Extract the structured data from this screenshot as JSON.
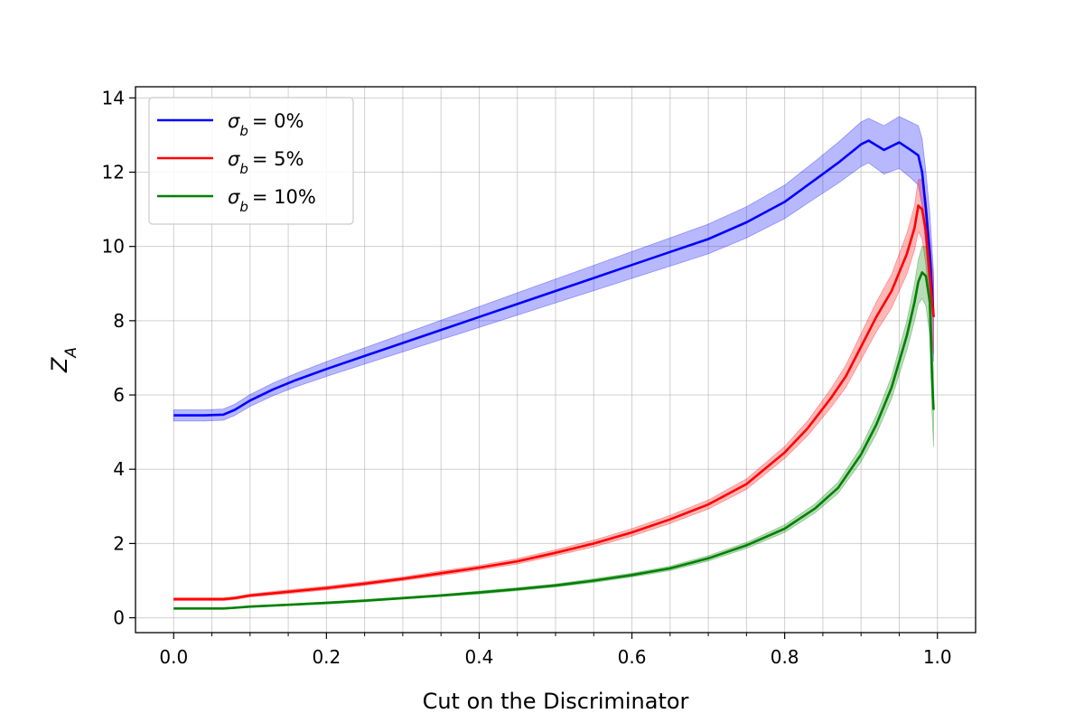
{
  "chart_data": {
    "type": "line",
    "title": "",
    "xlabel": "Cut on the Discriminator",
    "ylabel": "Z_A",
    "xlim": [
      -0.05,
      1.05
    ],
    "ylim": [
      -0.4,
      14.3
    ],
    "xticks": [
      0.0,
      0.2,
      0.4,
      0.6,
      0.8,
      1.0
    ],
    "xtick_labels": [
      "0.0",
      "0.2",
      "0.4",
      "0.6",
      "0.8",
      "1.0"
    ],
    "xminor_ticks": [
      0.05,
      0.1,
      0.15,
      0.25,
      0.3,
      0.35,
      0.45,
      0.5,
      0.55,
      0.65,
      0.7,
      0.75,
      0.85,
      0.9,
      0.95
    ],
    "yticks": [
      0,
      2,
      4,
      6,
      8,
      10,
      12,
      14
    ],
    "ytick_labels": [
      "0",
      "2",
      "4",
      "6",
      "8",
      "10",
      "12",
      "14"
    ],
    "grid": true,
    "legend_position": "top-left",
    "series": [
      {
        "name": "σ_b = 0%",
        "color": "#0000ff",
        "x": [
          0.0,
          0.02,
          0.04,
          0.065,
          0.08,
          0.1,
          0.13,
          0.16,
          0.2,
          0.25,
          0.3,
          0.35,
          0.4,
          0.45,
          0.5,
          0.55,
          0.6,
          0.65,
          0.7,
          0.75,
          0.8,
          0.84,
          0.87,
          0.9,
          0.91,
          0.93,
          0.95,
          0.965,
          0.975,
          0.98,
          0.985,
          0.99,
          0.995
        ],
        "y": [
          5.45,
          5.45,
          5.45,
          5.47,
          5.6,
          5.85,
          6.15,
          6.4,
          6.7,
          7.05,
          7.4,
          7.75,
          8.1,
          8.45,
          8.8,
          9.15,
          9.5,
          9.85,
          10.2,
          10.65,
          11.2,
          11.8,
          12.25,
          12.75,
          12.85,
          12.6,
          12.8,
          12.6,
          12.45,
          12.0,
          11.0,
          9.8,
          8.1
        ],
        "band": [
          0.15,
          0.15,
          0.15,
          0.15,
          0.15,
          0.16,
          0.17,
          0.18,
          0.2,
          0.22,
          0.24,
          0.26,
          0.28,
          0.3,
          0.32,
          0.34,
          0.36,
          0.38,
          0.4,
          0.42,
          0.45,
          0.5,
          0.55,
          0.6,
          0.6,
          0.65,
          0.7,
          0.75,
          0.8,
          0.9,
          1.0,
          1.1,
          1.2
        ]
      },
      {
        "name": "σ_b = 5%",
        "color": "#ff0000",
        "x": [
          0.0,
          0.02,
          0.04,
          0.065,
          0.08,
          0.1,
          0.15,
          0.2,
          0.25,
          0.3,
          0.35,
          0.4,
          0.45,
          0.5,
          0.55,
          0.6,
          0.65,
          0.7,
          0.75,
          0.8,
          0.83,
          0.86,
          0.88,
          0.9,
          0.92,
          0.94,
          0.96,
          0.97,
          0.975,
          0.98,
          0.985,
          0.99,
          0.995
        ],
        "y": [
          0.5,
          0.5,
          0.5,
          0.5,
          0.53,
          0.6,
          0.7,
          0.8,
          0.92,
          1.05,
          1.2,
          1.35,
          1.52,
          1.75,
          2.0,
          2.3,
          2.65,
          3.05,
          3.6,
          4.45,
          5.1,
          5.9,
          6.5,
          7.3,
          8.1,
          8.8,
          9.8,
          10.5,
          11.1,
          11.0,
          10.4,
          9.2,
          8.1
        ],
        "band": [
          0.04,
          0.04,
          0.04,
          0.04,
          0.04,
          0.04,
          0.05,
          0.05,
          0.05,
          0.05,
          0.06,
          0.06,
          0.07,
          0.08,
          0.09,
          0.1,
          0.11,
          0.12,
          0.14,
          0.16,
          0.2,
          0.25,
          0.3,
          0.35,
          0.4,
          0.45,
          0.55,
          0.6,
          0.7,
          0.8,
          0.9,
          1.0,
          1.0
        ]
      },
      {
        "name": "σ_b = 10%",
        "color": "#008000",
        "x": [
          0.0,
          0.02,
          0.04,
          0.065,
          0.08,
          0.1,
          0.15,
          0.2,
          0.25,
          0.3,
          0.35,
          0.4,
          0.45,
          0.5,
          0.55,
          0.6,
          0.65,
          0.7,
          0.75,
          0.8,
          0.84,
          0.87,
          0.9,
          0.92,
          0.94,
          0.96,
          0.97,
          0.975,
          0.98,
          0.985,
          0.99,
          0.993,
          0.995
        ],
        "y": [
          0.25,
          0.25,
          0.25,
          0.25,
          0.27,
          0.3,
          0.35,
          0.4,
          0.46,
          0.53,
          0.6,
          0.68,
          0.77,
          0.87,
          1.0,
          1.15,
          1.33,
          1.6,
          1.95,
          2.4,
          2.95,
          3.5,
          4.4,
          5.2,
          6.2,
          7.6,
          8.5,
          9.05,
          9.3,
          9.2,
          8.5,
          6.5,
          5.6
        ],
        "band": [
          0.02,
          0.02,
          0.02,
          0.02,
          0.02,
          0.02,
          0.02,
          0.03,
          0.03,
          0.03,
          0.03,
          0.04,
          0.04,
          0.04,
          0.05,
          0.05,
          0.06,
          0.07,
          0.08,
          0.1,
          0.12,
          0.15,
          0.2,
          0.25,
          0.3,
          0.4,
          0.5,
          0.6,
          0.7,
          0.8,
          0.9,
          1.0,
          1.0
        ]
      }
    ]
  }
}
